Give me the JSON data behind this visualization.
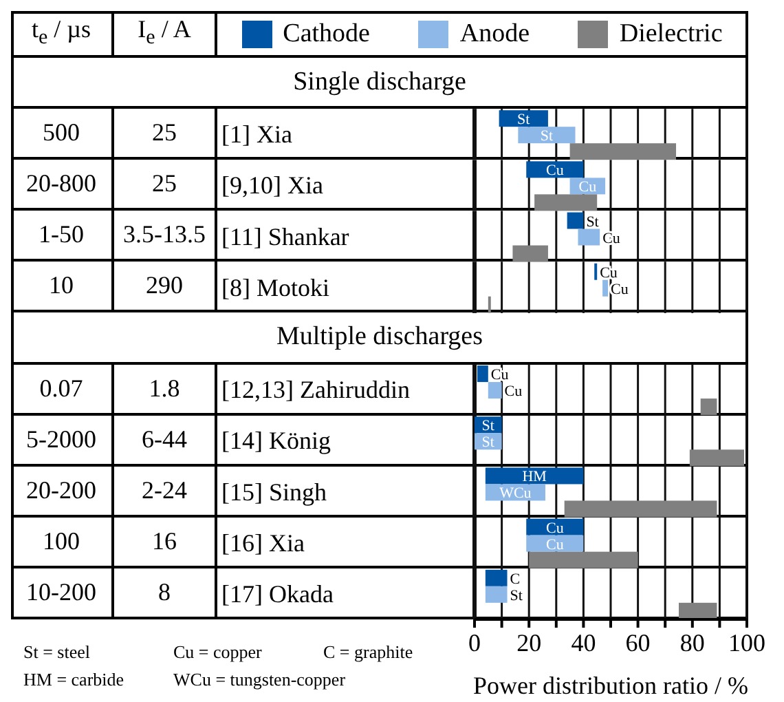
{
  "chart_data": {
    "type": "bar",
    "orientation": "horizontal",
    "categories": [
      null,
      "[1] Xia",
      "[9,10]  Xia",
      "[11]  Shankar",
      "[8] Motoki",
      null,
      "[12,13]  Zahiruddin",
      "[14]  König",
      "[15]  Singh",
      "[16]  Xia",
      "[17]  Okada"
    ],
    "series": [
      {
        "name": "Cathode",
        "color": "#0055a4",
        "base": [
          null,
          9,
          19,
          34,
          44,
          null,
          1,
          0,
          4,
          19,
          4
        ],
        "values": [
          null,
          18,
          21,
          6,
          1,
          null,
          4,
          10,
          36,
          21,
          8
        ],
        "value_labels": [
          null,
          "St",
          "Cu",
          "St",
          "Cu",
          null,
          "Cu",
          "St",
          "HM",
          "Cu",
          "C"
        ]
      },
      {
        "name": "Anode",
        "color": "#8db8e8",
        "base": [
          null,
          16,
          35,
          38,
          47,
          null,
          5,
          0,
          4,
          19,
          4
        ],
        "values": [
          null,
          21,
          13,
          8,
          2,
          null,
          5,
          10,
          22,
          21,
          8
        ],
        "value_labels": [
          null,
          "St",
          "Cu",
          "Cu",
          "Cu",
          null,
          "Cu",
          "St",
          "WCu",
          "Cu",
          "St"
        ]
      },
      {
        "name": "Dielectric",
        "color": "#808080",
        "base": [
          null,
          35,
          22,
          14,
          5,
          null,
          83,
          79,
          33,
          20,
          75
        ],
        "values": [
          null,
          39,
          23,
          13,
          1,
          null,
          6,
          20,
          56,
          40,
          14
        ]
      }
    ],
    "xlim": [
      0,
      100
    ],
    "xticks": [
      0,
      {
        "value": 10,
        "label": null
      },
      20,
      {
        "value": 30,
        "label": null
      },
      40,
      {
        "value": 50,
        "label": null
      },
      60,
      {
        "value": 70,
        "label": null
      },
      80,
      {
        "value": 90,
        "label": null
      },
      100
    ],
    "xlabel": "Power distribution ratio / %",
    "grid": "x",
    "legend": "top",
    "annotations": [
      "t$_{e}$ / µs",
      "I$_{e}$ / A",
      "Single discharge",
      "500",
      "25",
      "20-800",
      "25",
      "1-50",
      "3.5-13.5",
      "10",
      "290",
      "Multiple discharges",
      "0.07",
      "1.8",
      "5-2000",
      "6-44",
      "20-200",
      "2-24",
      "100",
      "16",
      "10-200",
      "8",
      "St = steel",
      "Cu = copper",
      "C = graphite",
      "HM = carbide",
      "WCu = tungsten-copper"
    ]
  }
}
